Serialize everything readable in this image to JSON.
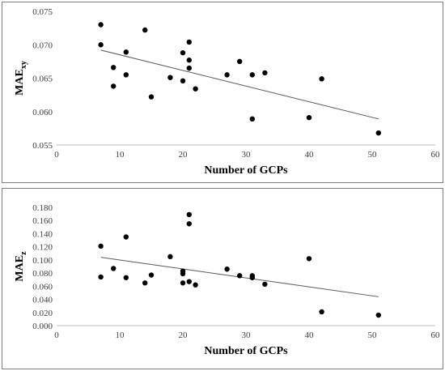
{
  "chart_data": [
    {
      "type": "scatter",
      "xlabel": "Number of GCPs",
      "ylabel": "MAE",
      "ylabel_sub": "xy",
      "xlim": [
        0,
        60
      ],
      "ylim": [
        0.055,
        0.075
      ],
      "xticks": [
        "0",
        "10",
        "20",
        "30",
        "40",
        "50",
        "60"
      ],
      "yticks": [
        "0.055",
        "0.060",
        "0.065",
        "0.070",
        "0.075"
      ],
      "grid": false,
      "trendline": {
        "from": [
          7,
          0.0692
        ],
        "to": [
          51,
          0.0589
        ]
      },
      "points": [
        {
          "x": 7,
          "y": 0.073
        },
        {
          "x": 7,
          "y": 0.07
        },
        {
          "x": 9,
          "y": 0.0666
        },
        {
          "x": 9,
          "y": 0.0638
        },
        {
          "x": 11,
          "y": 0.0689
        },
        {
          "x": 11,
          "y": 0.0655
        },
        {
          "x": 14,
          "y": 0.0722
        },
        {
          "x": 15,
          "y": 0.0622
        },
        {
          "x": 18,
          "y": 0.0651
        },
        {
          "x": 20,
          "y": 0.0688
        },
        {
          "x": 20,
          "y": 0.0646
        },
        {
          "x": 21,
          "y": 0.0704
        },
        {
          "x": 21,
          "y": 0.0677
        },
        {
          "x": 21,
          "y": 0.0665
        },
        {
          "x": 22,
          "y": 0.0634
        },
        {
          "x": 27,
          "y": 0.0655
        },
        {
          "x": 29,
          "y": 0.0675
        },
        {
          "x": 31,
          "y": 0.0655
        },
        {
          "x": 31,
          "y": 0.0589
        },
        {
          "x": 33,
          "y": 0.0658
        },
        {
          "x": 40,
          "y": 0.0591
        },
        {
          "x": 42,
          "y": 0.0649
        },
        {
          "x": 51,
          "y": 0.0568
        }
      ]
    },
    {
      "type": "scatter",
      "xlabel": "Number of GCPs",
      "ylabel": "MAE",
      "ylabel_sub": "z",
      "xlim": [
        0,
        60
      ],
      "ylim": [
        0,
        0.18
      ],
      "xticks": [
        "0",
        "10",
        "20",
        "30",
        "40",
        "50",
        "60"
      ],
      "yticks": [
        "0.000",
        "0.020",
        "0.040",
        "0.060",
        "0.080",
        "0.100",
        "0.120",
        "0.140",
        "0.160",
        "0.180"
      ],
      "grid": false,
      "trendline": {
        "from": [
          7,
          0.104
        ],
        "to": [
          51,
          0.044
        ]
      },
      "points": [
        {
          "x": 7,
          "y": 0.121
        },
        {
          "x": 7,
          "y": 0.074
        },
        {
          "x": 9,
          "y": 0.087
        },
        {
          "x": 11,
          "y": 0.135
        },
        {
          "x": 11,
          "y": 0.073
        },
        {
          "x": 14,
          "y": 0.065
        },
        {
          "x": 15,
          "y": 0.077
        },
        {
          "x": 18,
          "y": 0.105
        },
        {
          "x": 20,
          "y": 0.083
        },
        {
          "x": 20,
          "y": 0.079
        },
        {
          "x": 20,
          "y": 0.065
        },
        {
          "x": 21,
          "y": 0.169
        },
        {
          "x": 21,
          "y": 0.155
        },
        {
          "x": 21,
          "y": 0.067
        },
        {
          "x": 22,
          "y": 0.062
        },
        {
          "x": 27,
          "y": 0.086
        },
        {
          "x": 29,
          "y": 0.076
        },
        {
          "x": 31,
          "y": 0.076
        },
        {
          "x": 31,
          "y": 0.073
        },
        {
          "x": 33,
          "y": 0.063
        },
        {
          "x": 40,
          "y": 0.102
        },
        {
          "x": 42,
          "y": 0.021
        },
        {
          "x": 51,
          "y": 0.016
        }
      ]
    }
  ]
}
